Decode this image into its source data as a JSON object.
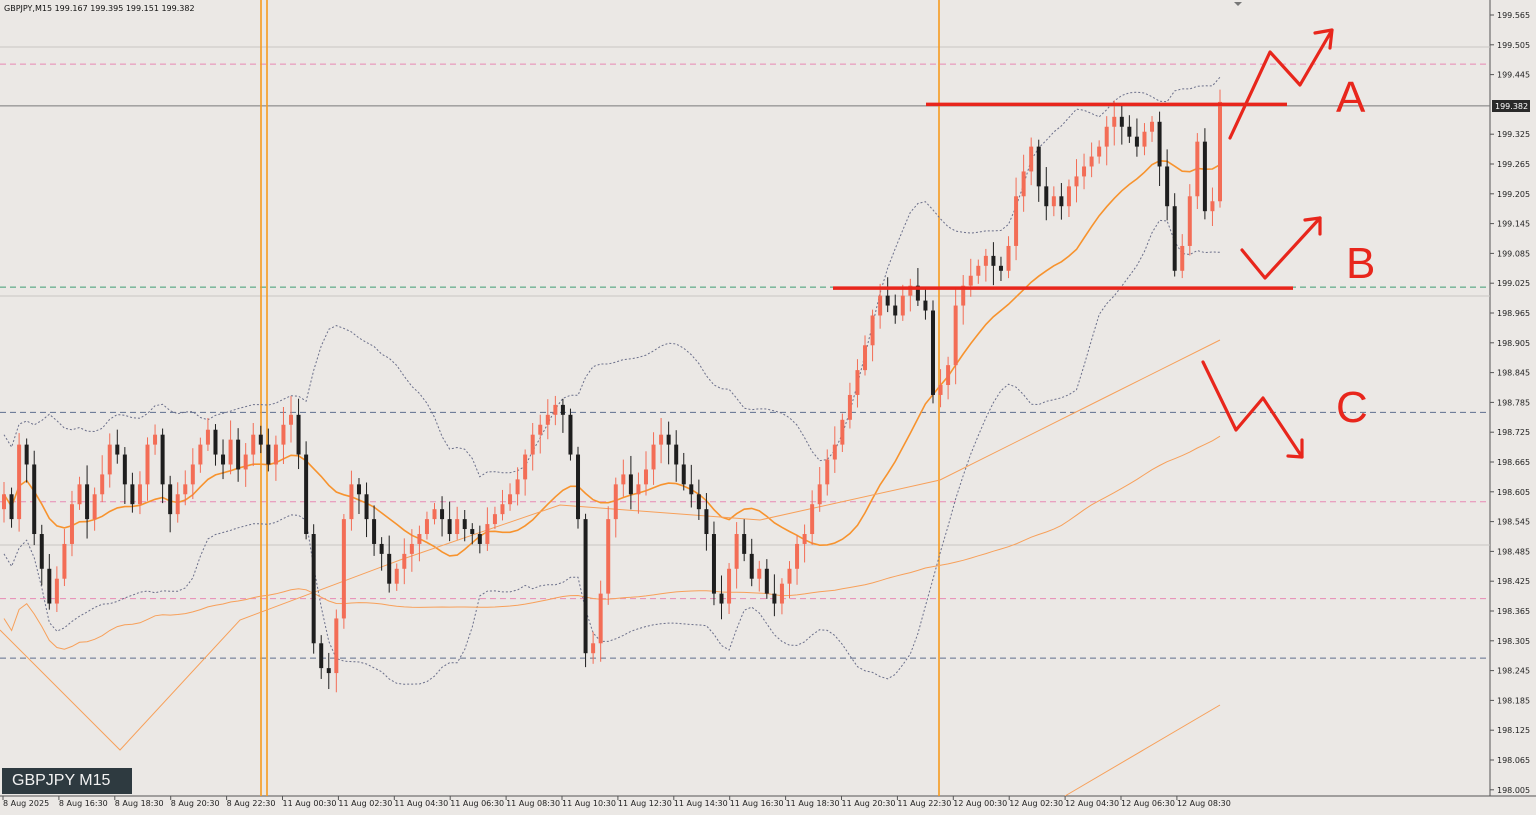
{
  "header": {
    "symbol_timeframe": "GBPJPY,M15",
    "ohlc": "199.167 199.395 199.151 199.382"
  },
  "badge": {
    "label": "GBPJPY M15"
  },
  "price_axis": {
    "current_price_label": "199.382",
    "tick_labels": [
      "199.565",
      "199.505",
      "199.445",
      "199.325",
      "199.265",
      "199.205",
      "199.145",
      "199.085",
      "199.025",
      "198.965",
      "198.905",
      "198.845",
      "198.785",
      "198.725",
      "198.665",
      "198.605",
      "198.545",
      "198.485",
      "198.425",
      "198.365",
      "198.305",
      "198.245",
      "198.185",
      "198.125",
      "198.065",
      "198.005"
    ]
  },
  "time_axis": {
    "labels": [
      "8 Aug 2025",
      "8 Aug 16:30",
      "8 Aug 18:30",
      "8 Aug 20:30",
      "8 Aug 22:30",
      "11 Aug 00:30",
      "11 Aug 02:30",
      "11 Aug 04:30",
      "11 Aug 06:30",
      "11 Aug 08:30",
      "11 Aug 10:30",
      "11 Aug 12:30",
      "11 Aug 14:30",
      "11 Aug 16:30",
      "11 Aug 18:30",
      "11 Aug 20:30",
      "11 Aug 22:30",
      "12 Aug 00:30",
      "12 Aug 02:30",
      "12 Aug 04:30",
      "12 Aug 06:30",
      "12 Aug 08:30"
    ]
  },
  "annotations": {
    "a": "A",
    "b": "B",
    "c": "C"
  },
  "colors": {
    "background": "#ebe8e5",
    "bull_candle": "#f36d56",
    "bear_candle": "#1e1e1e",
    "ma_fast": "#f7932e",
    "ma_slow": "#f7a05a",
    "bands": "#6b6f8a",
    "vertical_lines": "#f79a1e",
    "hline_pink": "#e889b4",
    "hline_green": "#3f9d73",
    "hline_blue": "#5f6f8f",
    "drawing": "#e8261c"
  },
  "chart_data": {
    "type": "candlestick",
    "title": "GBPJPY,M15",
    "ylim": [
      198.005,
      199.595
    ],
    "horizontal_levels": [
      {
        "price": 199.466,
        "style": "pink-dashed"
      },
      {
        "price": 199.382,
        "style": "grey-solid"
      },
      {
        "price": 199.017,
        "style": "green-dashed"
      },
      {
        "price": 198.765,
        "style": "blue-dashed"
      },
      {
        "price": 198.585,
        "style": "pink-dashed"
      },
      {
        "price": 198.39,
        "style": "pink-dashed"
      },
      {
        "price": 198.27,
        "style": "blue-dashed"
      }
    ],
    "resistance_line": {
      "price": 199.385,
      "from": "11 Aug 22:30",
      "to": "12 Aug 09:30"
    },
    "support_line": {
      "price": 199.015,
      "from": "11 Aug 20:00",
      "to": "12 Aug 10:00"
    },
    "candles_close": [
      198.6,
      198.55,
      198.7,
      198.66,
      198.52,
      198.45,
      198.38,
      198.43,
      198.5,
      198.58,
      198.62,
      198.55,
      198.6,
      198.64,
      198.7,
      198.68,
      198.62,
      198.58,
      198.62,
      198.7,
      198.72,
      198.62,
      198.56,
      198.6,
      198.62,
      198.66,
      198.7,
      198.73,
      198.68,
      198.66,
      198.71,
      198.65,
      198.68,
      198.72,
      198.7,
      198.66,
      198.7,
      198.74,
      198.76,
      198.68,
      198.52,
      198.3,
      198.25,
      198.24,
      198.35,
      198.55,
      198.62,
      198.6,
      198.55,
      198.5,
      198.48,
      198.42,
      198.45,
      198.48,
      198.5,
      198.52,
      198.55,
      198.57,
      198.55,
      198.52,
      198.55,
      198.53,
      198.52,
      198.5,
      198.54,
      198.56,
      198.58,
      198.6,
      198.63,
      198.68,
      198.72,
      198.74,
      198.76,
      198.78,
      198.76,
      198.68,
      198.55,
      198.28,
      198.3,
      198.4,
      198.55,
      198.62,
      198.64,
      198.6,
      198.62,
      198.65,
      198.7,
      198.72,
      198.7,
      198.66,
      198.62,
      198.6,
      198.57,
      198.52,
      198.4,
      198.38,
      198.45,
      198.52,
      198.48,
      198.43,
      198.45,
      198.4,
      198.38,
      198.42,
      198.45,
      198.5,
      198.52,
      198.58,
      198.62,
      198.67,
      198.7,
      198.75,
      198.8,
      198.85,
      198.9,
      198.96,
      199.0,
      198.98,
      198.96,
      199.0,
      199.02,
      198.99,
      198.97,
      198.8,
      198.82,
      198.86,
      198.98,
      199.02,
      199.04,
      199.06,
      199.08,
      199.06,
      199.05,
      199.1,
      199.2,
      199.25,
      199.3,
      199.22,
      199.18,
      199.2,
      199.18,
      199.22,
      199.24,
      199.26,
      199.28,
      199.3,
      199.34,
      199.36,
      199.34,
      199.32,
      199.3,
      199.33,
      199.35,
      199.26,
      199.18,
      199.05,
      199.1,
      199.2,
      199.31,
      199.17,
      199.19,
      199.39
    ]
  }
}
